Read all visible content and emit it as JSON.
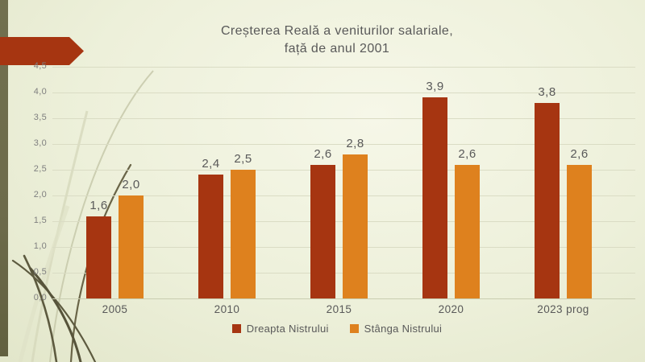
{
  "slide": {
    "title_line1": "Creșterea Reală a veniturilor salariale,",
    "title_line2": "față de anul 2001"
  },
  "chart_data": {
    "type": "bar",
    "title": "Creșterea Reală a veniturilor salariale, față de anul 2001",
    "categories": [
      "2005",
      "2010",
      "2015",
      "2020",
      "2023 prog"
    ],
    "series": [
      {
        "name": "Dreapta Nistrului",
        "color": "#a63511",
        "values": [
          1.6,
          2.4,
          2.6,
          3.9,
          3.8
        ],
        "labels": [
          "1,6",
          "2,4",
          "2,6",
          "3,9",
          "3,8"
        ]
      },
      {
        "name": "Stânga Nistrului",
        "color": "#de811e",
        "values": [
          2.0,
          2.5,
          2.8,
          2.6,
          2.6
        ],
        "labels": [
          "2,0",
          "2,5",
          "2,8",
          "2,6",
          "2,6"
        ]
      }
    ],
    "ylim": [
      0,
      4.5
    ],
    "ytick_step": 0.5,
    "ytick_labels": [
      "0,0",
      "0,5",
      "1,0",
      "1,5",
      "2,0",
      "2,5",
      "3,0",
      "3,5",
      "4,0",
      "4,5"
    ],
    "grid": true,
    "legend_position": "bottom"
  },
  "theme": {
    "accent_red": "#a63511",
    "accent_orange": "#de811e",
    "stripe_olive": "#6d6b4b",
    "text_gray": "#595959",
    "tick_gray": "#7f7f7f",
    "gridline": "#dadcc4"
  }
}
